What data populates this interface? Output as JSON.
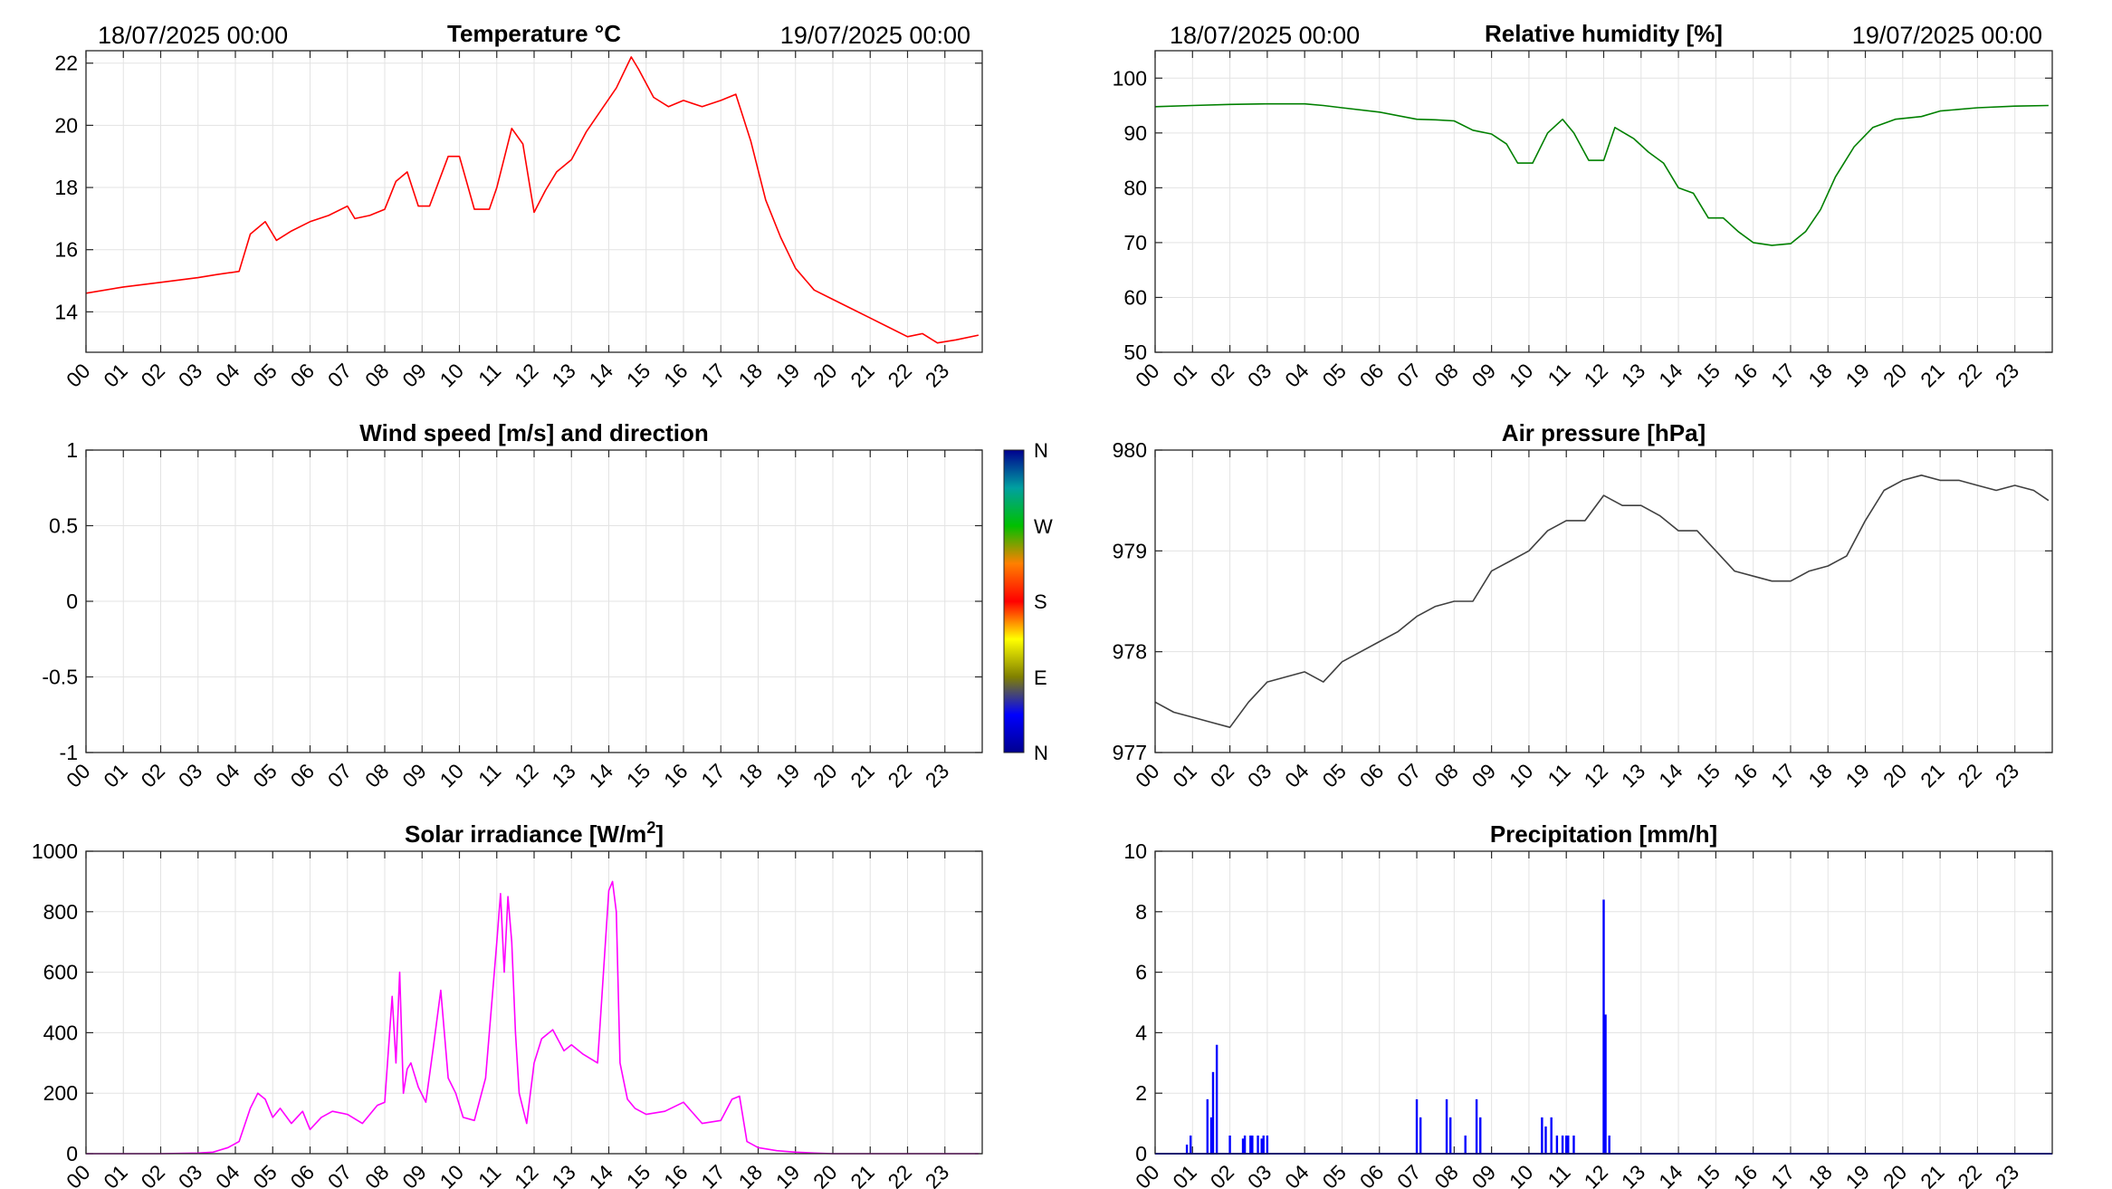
{
  "header": {
    "start_label": "18/07/2025 00:00",
    "end_label": "19/07/2025 00:00"
  },
  "x_hour_labels": [
    "00",
    "01",
    "02",
    "03",
    "04",
    "05",
    "06",
    "07",
    "08",
    "09",
    "10",
    "11",
    "12",
    "13",
    "14",
    "15",
    "16",
    "17",
    "18",
    "19",
    "20",
    "21",
    "22",
    "23"
  ],
  "colors": {
    "temperature": "#ff0000",
    "humidity": "#008000",
    "pressure": "#404040",
    "solar": "#ff00ff",
    "precipitation": "#0000ff",
    "grid": "#e3e3e3"
  },
  "chart_data": [
    {
      "id": "temperature",
      "type": "line",
      "title": "Temperature °C",
      "title_unit_superscript": "",
      "x_unit": "hour of day",
      "ylim": [
        12.7,
        22.4
      ],
      "yticks": [
        14,
        16,
        18,
        20,
        22
      ],
      "grid": true,
      "series": [
        {
          "color": "#ff0000",
          "x": [
            0,
            1,
            2,
            3,
            3.5,
            4.1,
            4.4,
            4.8,
            5.1,
            5.5,
            6,
            6.5,
            7,
            7.2,
            7.6,
            8,
            8.3,
            8.6,
            8.9,
            9.2,
            9.7,
            10,
            10.4,
            10.8,
            11,
            11.4,
            11.7,
            12,
            12.3,
            12.6,
            13,
            13.4,
            13.8,
            14.2,
            14.6,
            14.8,
            15.2,
            15.6,
            16,
            16.5,
            17,
            17.4,
            17.8,
            18.2,
            18.6,
            19,
            19.5,
            20,
            20.5,
            21,
            21.5,
            22,
            22.4,
            22.8,
            23.3,
            23.9
          ],
          "y": [
            14.6,
            14.8,
            14.95,
            15.1,
            15.2,
            15.3,
            16.5,
            16.9,
            16.3,
            16.6,
            16.9,
            17.1,
            17.4,
            17.0,
            17.1,
            17.3,
            18.2,
            18.5,
            17.4,
            17.4,
            19.0,
            19.0,
            17.3,
            17.3,
            18.0,
            19.9,
            19.4,
            17.2,
            17.9,
            18.5,
            18.9,
            19.8,
            20.5,
            21.2,
            22.2,
            21.8,
            20.9,
            20.6,
            20.8,
            20.6,
            20.8,
            21.0,
            19.5,
            17.6,
            16.4,
            15.4,
            14.7,
            14.4,
            14.1,
            13.8,
            13.5,
            13.2,
            13.3,
            13.0,
            13.1,
            13.25
          ]
        }
      ]
    },
    {
      "id": "humidity",
      "type": "line",
      "title": "Relative humidity [%]",
      "title_unit_superscript": "",
      "x_unit": "hour of day",
      "ylim": [
        50,
        105
      ],
      "yticks": [
        50,
        60,
        70,
        80,
        90,
        100
      ],
      "grid": true,
      "series": [
        {
          "color": "#008000",
          "x": [
            0,
            1,
            2,
            3,
            4,
            4.5,
            5,
            6,
            7,
            7.5,
            8,
            8.5,
            9,
            9.4,
            9.7,
            10.1,
            10.5,
            10.9,
            11.2,
            11.6,
            12,
            12.3,
            12.8,
            13.2,
            13.6,
            14,
            14.4,
            14.8,
            15.2,
            15.6,
            16,
            16.5,
            17,
            17.4,
            17.8,
            18.2,
            18.7,
            19.2,
            19.8,
            20.5,
            21,
            22,
            23,
            23.9
          ],
          "y": [
            94.8,
            95.0,
            95.2,
            95.3,
            95.3,
            95.0,
            94.6,
            93.8,
            92.5,
            92.4,
            92.2,
            90.5,
            89.8,
            88.0,
            84.5,
            84.5,
            90.0,
            92.5,
            90.0,
            85.0,
            85.0,
            91.0,
            89.0,
            86.5,
            84.5,
            80.0,
            79.0,
            74.5,
            74.5,
            72.0,
            70.0,
            69.5,
            69.8,
            72.0,
            76.0,
            82.0,
            87.5,
            91.0,
            92.5,
            93.0,
            94.0,
            94.6,
            94.9,
            95.0
          ]
        }
      ]
    },
    {
      "id": "wind",
      "type": "scatter",
      "title": "Wind speed [m/s] and direction",
      "title_unit_superscript": "",
      "x_unit": "hour of day",
      "ylim": [
        -1,
        1
      ],
      "yticks": [
        -1,
        -0.5,
        0,
        0.5,
        1
      ],
      "grid": true,
      "series": [],
      "colorbar": {
        "labels": [
          "N",
          "W",
          "S",
          "E",
          "N"
        ],
        "colormap": "jet (top N = dark blue, bottom N = dark blue)"
      }
    },
    {
      "id": "pressure",
      "type": "line",
      "title": "Air pressure [hPa]",
      "title_unit_superscript": "",
      "x_unit": "hour of day",
      "ylim": [
        977,
        980
      ],
      "yticks": [
        977,
        978,
        979,
        980
      ],
      "grid": true,
      "series": [
        {
          "color": "#404040",
          "x": [
            0,
            0.5,
            1,
            1.5,
            2,
            2.5,
            3,
            3.5,
            4,
            4.5,
            5,
            5.5,
            6,
            6.5,
            7,
            7.5,
            8,
            8.5,
            9,
            9.5,
            10,
            10.5,
            11,
            11.5,
            12,
            12.5,
            13,
            13.5,
            14,
            14.5,
            15,
            15.5,
            16,
            16.5,
            17,
            17.5,
            18,
            18.5,
            19,
            19.5,
            20,
            20.5,
            21,
            21.5,
            22,
            22.5,
            23,
            23.5,
            23.9
          ],
          "y": [
            977.5,
            977.4,
            977.35,
            977.3,
            977.25,
            977.5,
            977.7,
            977.75,
            977.8,
            977.7,
            977.9,
            978.0,
            978.1,
            978.2,
            978.35,
            978.45,
            978.5,
            978.5,
            978.8,
            978.9,
            979.0,
            979.2,
            979.3,
            979.3,
            979.55,
            979.45,
            979.45,
            979.35,
            979.2,
            979.2,
            979.0,
            978.8,
            978.75,
            978.7,
            978.7,
            978.8,
            978.85,
            978.95,
            979.3,
            979.6,
            979.7,
            979.75,
            979.7,
            979.7,
            979.65,
            979.6,
            979.65,
            979.6,
            979.5
          ]
        }
      ]
    },
    {
      "id": "solar",
      "type": "line",
      "title": "Solar irradiance [W/m",
      "title_unit_superscript": "2",
      "title_suffix": "]",
      "x_unit": "hour of day",
      "ylim": [
        0,
        1000
      ],
      "yticks": [
        0,
        200,
        400,
        600,
        800,
        1000
      ],
      "grid": true,
      "series": [
        {
          "color": "#ff00ff",
          "x": [
            0,
            1,
            2,
            3,
            3.4,
            3.8,
            4.1,
            4.4,
            4.6,
            4.8,
            5.0,
            5.2,
            5.5,
            5.8,
            6.0,
            6.3,
            6.6,
            7.0,
            7.4,
            7.8,
            8.0,
            8.2,
            8.3,
            8.4,
            8.5,
            8.6,
            8.7,
            8.9,
            9.1,
            9.3,
            9.5,
            9.7,
            9.9,
            10.1,
            10.4,
            10.7,
            11.0,
            11.1,
            11.2,
            11.3,
            11.4,
            11.5,
            11.6,
            11.8,
            12.0,
            12.2,
            12.5,
            12.8,
            13.0,
            13.3,
            13.7,
            14.0,
            14.1,
            14.2,
            14.3,
            14.5,
            14.7,
            15.0,
            15.5,
            16.0,
            16.5,
            17.0,
            17.3,
            17.5,
            17.7,
            18.0,
            18.5,
            19.0,
            19.5,
            20,
            21,
            22,
            23,
            23.9
          ],
          "y": [
            0,
            0,
            0,
            2,
            5,
            20,
            40,
            150,
            200,
            180,
            120,
            150,
            100,
            140,
            80,
            120,
            140,
            130,
            100,
            160,
            170,
            520,
            300,
            600,
            200,
            280,
            300,
            220,
            170,
            350,
            540,
            250,
            200,
            120,
            110,
            250,
            700,
            860,
            600,
            850,
            700,
            400,
            200,
            100,
            300,
            380,
            410,
            340,
            360,
            330,
            300,
            870,
            900,
            800,
            300,
            180,
            150,
            130,
            140,
            170,
            100,
            110,
            180,
            190,
            40,
            20,
            10,
            5,
            2,
            0,
            0,
            0,
            0,
            0
          ]
        }
      ]
    },
    {
      "id": "precipitation",
      "type": "bar",
      "title": "Precipitation [mm/h]",
      "title_unit_superscript": "",
      "x_unit": "hour of day",
      "ylim": [
        0,
        10
      ],
      "yticks": [
        0,
        2,
        4,
        6,
        8,
        10
      ],
      "grid": true,
      "series": [
        {
          "color": "#0000ff",
          "x": [
            0.85,
            0.95,
            1.4,
            1.5,
            1.55,
            1.65,
            2.0,
            2.35,
            2.4,
            2.55,
            2.6,
            2.75,
            2.85,
            2.9,
            3.0,
            7.0,
            7.1,
            7.8,
            7.9,
            8.3,
            8.6,
            8.7,
            10.35,
            10.45,
            10.6,
            10.75,
            10.9,
            11.0,
            11.05,
            11.2,
            12.0,
            12.05,
            12.15
          ],
          "y": [
            0.3,
            0.6,
            1.8,
            1.2,
            2.7,
            3.6,
            0.6,
            0.5,
            0.6,
            0.6,
            0.6,
            0.6,
            0.5,
            0.6,
            0.6,
            1.8,
            1.2,
            1.8,
            1.2,
            0.6,
            1.8,
            1.2,
            1.2,
            0.9,
            1.2,
            0.6,
            0.6,
            0.6,
            0.6,
            0.6,
            8.4,
            4.6,
            0.6
          ]
        }
      ]
    }
  ]
}
